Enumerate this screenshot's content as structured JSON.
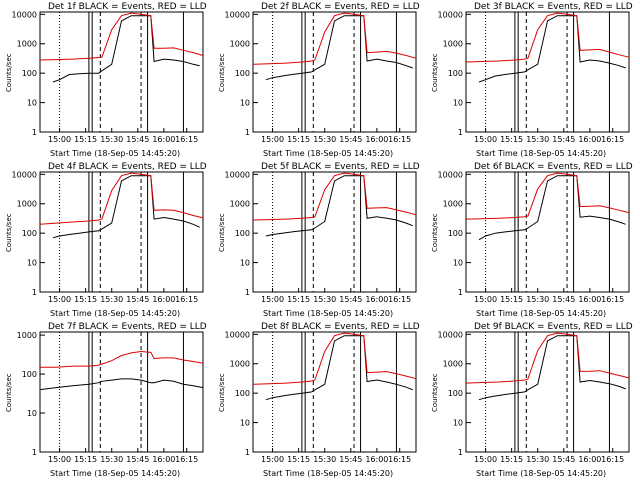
{
  "chart_data": [
    {
      "type": "line",
      "title": "Det 1f BLACK = Events, RED = LLD",
      "xlabel": "Start Time (18-Sep-05 14:45:20)",
      "ylabel": "Counts/sec",
      "x_ticks": [
        "15:00",
        "15:15",
        "15:30",
        "15:45",
        "16:00",
        "16:15"
      ],
      "y_ticks": [
        "1",
        "10",
        "100",
        "1000",
        "10000"
      ],
      "y_scale": "log",
      "ylim": [
        1,
        12000
      ],
      "series": [
        {
          "name": "Events",
          "color": "#000000",
          "x": [
            8,
            12,
            18,
            24,
            30,
            36,
            38,
            44,
            50,
            56,
            62,
            68,
            70,
            76,
            82,
            88,
            94,
            98
          ],
          "y": [
            50,
            60,
            90,
            95,
            100,
            100,
            120,
            200,
            6000,
            9000,
            9000,
            9000,
            250,
            300,
            280,
            250,
            200,
            180
          ]
        },
        {
          "name": "LLD",
          "color": "#dd0000",
          "x": [
            0,
            10,
            20,
            30,
            36,
            38,
            44,
            50,
            56,
            62,
            68,
            70,
            76,
            82,
            88,
            94,
            100
          ],
          "y": [
            280,
            290,
            300,
            320,
            340,
            350,
            3000,
            9000,
            11000,
            10000,
            9000,
            700,
            700,
            720,
            600,
            500,
            400
          ]
        }
      ]
    },
    {
      "type": "line",
      "title": "Det 2f BLACK = Events, RED = LLD",
      "xlabel": "Start Time (18-Sep-05 14:45:20)",
      "ylabel": "Counts/sec",
      "x_ticks": [
        "15:00",
        "15:15",
        "15:30",
        "15:45",
        "16:00",
        "16:15"
      ],
      "y_ticks": [
        "1",
        "10",
        "100",
        "1000",
        "10000"
      ],
      "y_scale": "log",
      "ylim": [
        1,
        12000
      ],
      "series": [
        {
          "name": "Events",
          "color": "#000000",
          "x": [
            8,
            12,
            18,
            24,
            30,
            36,
            38,
            44,
            50,
            56,
            62,
            68,
            70,
            76,
            82,
            88,
            94,
            98
          ],
          "y": [
            60,
            70,
            80,
            90,
            100,
            110,
            130,
            200,
            6000,
            9000,
            9000,
            9000,
            260,
            300,
            260,
            230,
            180,
            150
          ]
        },
        {
          "name": "LLD",
          "color": "#dd0000",
          "x": [
            0,
            10,
            20,
            30,
            36,
            38,
            44,
            50,
            56,
            62,
            68,
            70,
            76,
            82,
            88,
            94,
            100
          ],
          "y": [
            200,
            210,
            220,
            240,
            260,
            280,
            2500,
            9000,
            11000,
            10000,
            9000,
            500,
            520,
            550,
            480,
            400,
            320
          ]
        }
      ]
    },
    {
      "type": "line",
      "title": "Det 3f BLACK = Events, RED = LLD",
      "xlabel": "Start Time (18-Sep-05 14:45:20)",
      "ylabel": "Counts/sec",
      "x_ticks": [
        "15:00",
        "15:15",
        "15:30",
        "15:45",
        "16:00",
        "16:15"
      ],
      "y_ticks": [
        "1",
        "10",
        "100",
        "1000",
        "10000"
      ],
      "y_scale": "log",
      "ylim": [
        1,
        12000
      ],
      "series": [
        {
          "name": "Events",
          "color": "#000000",
          "x": [
            8,
            12,
            18,
            24,
            30,
            36,
            38,
            44,
            50,
            56,
            62,
            68,
            70,
            76,
            82,
            88,
            94,
            98
          ],
          "y": [
            50,
            60,
            80,
            90,
            100,
            110,
            130,
            200,
            6000,
            9000,
            9000,
            9000,
            240,
            280,
            260,
            220,
            180,
            150
          ]
        },
        {
          "name": "LLD",
          "color": "#dd0000",
          "x": [
            0,
            10,
            20,
            30,
            36,
            38,
            44,
            50,
            56,
            62,
            68,
            70,
            76,
            82,
            88,
            94,
            100
          ],
          "y": [
            240,
            250,
            260,
            280,
            300,
            320,
            3000,
            9000,
            11000,
            10000,
            9000,
            600,
            620,
            640,
            520,
            420,
            350
          ]
        }
      ]
    },
    {
      "type": "line",
      "title": "Det 4f BLACK = Events, RED = LLD",
      "xlabel": "Start Time (18-Sep-05 14:45:20)",
      "ylabel": "Counts/sec",
      "x_ticks": [
        "15:00",
        "15:15",
        "15:30",
        "15:45",
        "16:00",
        "16:15"
      ],
      "y_ticks": [
        "1",
        "10",
        "100",
        "1000",
        "10000"
      ],
      "y_scale": "log",
      "ylim": [
        1,
        12000
      ],
      "series": [
        {
          "name": "Events",
          "color": "#000000",
          "x": [
            8,
            12,
            18,
            24,
            30,
            36,
            38,
            44,
            50,
            56,
            62,
            68,
            70,
            76,
            82,
            88,
            94,
            98
          ],
          "y": [
            70,
            80,
            90,
            100,
            110,
            120,
            140,
            220,
            6000,
            9000,
            9000,
            9000,
            300,
            340,
            300,
            260,
            200,
            160
          ]
        },
        {
          "name": "LLD",
          "color": "#dd0000",
          "x": [
            0,
            10,
            20,
            30,
            36,
            38,
            44,
            50,
            56,
            62,
            68,
            70,
            76,
            82,
            88,
            94,
            100
          ],
          "y": [
            200,
            220,
            240,
            260,
            280,
            300,
            2800,
            9000,
            11000,
            10000,
            9000,
            600,
            620,
            600,
            500,
            400,
            330
          ]
        }
      ]
    },
    {
      "type": "line",
      "title": "Det 5f BLACK = Events, RED = LLD",
      "xlabel": "Start Time (18-Sep-05 14:45:20)",
      "ylabel": "Counts/sec",
      "x_ticks": [
        "15:00",
        "15:15",
        "15:30",
        "15:45",
        "16:00",
        "16:15"
      ],
      "y_ticks": [
        "1",
        "10",
        "100",
        "1000",
        "10000"
      ],
      "y_scale": "log",
      "ylim": [
        1,
        12000
      ],
      "series": [
        {
          "name": "Events",
          "color": "#000000",
          "x": [
            8,
            12,
            18,
            24,
            30,
            36,
            38,
            44,
            50,
            56,
            62,
            68,
            70,
            76,
            82,
            88,
            94,
            98
          ],
          "y": [
            80,
            90,
            100,
            110,
            120,
            130,
            150,
            250,
            6000,
            9000,
            9000,
            9000,
            320,
            360,
            320,
            280,
            220,
            180
          ]
        },
        {
          "name": "LLD",
          "color": "#dd0000",
          "x": [
            0,
            10,
            20,
            30,
            36,
            38,
            44,
            50,
            56,
            62,
            68,
            70,
            76,
            82,
            88,
            94,
            100
          ],
          "y": [
            280,
            290,
            300,
            320,
            340,
            360,
            3000,
            9000,
            11000,
            10000,
            9000,
            700,
            720,
            740,
            620,
            520,
            420
          ]
        }
      ]
    },
    {
      "type": "line",
      "title": "Det 6f BLACK = Events, RED = LLD",
      "xlabel": "Start Time (18-Sep-05 14:45:20)",
      "ylabel": "Counts/sec",
      "x_ticks": [
        "15:00",
        "15:15",
        "15:30",
        "15:45",
        "16:00",
        "16:15"
      ],
      "y_ticks": [
        "1",
        "10",
        "100",
        "1000",
        "10000"
      ],
      "y_scale": "log",
      "ylim": [
        1,
        12000
      ],
      "series": [
        {
          "name": "Events",
          "color": "#000000",
          "x": [
            8,
            12,
            18,
            24,
            30,
            36,
            38,
            44,
            50,
            56,
            62,
            68,
            70,
            76,
            82,
            88,
            94,
            98
          ],
          "y": [
            60,
            80,
            100,
            110,
            120,
            130,
            150,
            250,
            6000,
            9000,
            9000,
            9000,
            350,
            380,
            340,
            300,
            240,
            200
          ]
        },
        {
          "name": "LLD",
          "color": "#dd0000",
          "x": [
            0,
            10,
            20,
            30,
            36,
            38,
            44,
            50,
            56,
            62,
            68,
            70,
            76,
            82,
            88,
            94,
            100
          ],
          "y": [
            300,
            310,
            320,
            340,
            360,
            380,
            3200,
            9000,
            11000,
            10000,
            9000,
            800,
            820,
            860,
            720,
            600,
            500
          ]
        }
      ]
    },
    {
      "type": "line",
      "title": "Det 7f BLACK = Events, RED = LLD",
      "xlabel": "Start Time (18-Sep-05 14:45:20)",
      "ylabel": "Counts/sec",
      "x_ticks": [
        "15:00",
        "15:15",
        "15:30",
        "15:45",
        "16:00",
        "16:15"
      ],
      "y_ticks": [
        "1",
        "10",
        "100",
        "1000"
      ],
      "y_scale": "log",
      "ylim": [
        1,
        1200
      ],
      "series": [
        {
          "name": "Events",
          "color": "#000000",
          "x": [
            0,
            10,
            20,
            30,
            36,
            38,
            44,
            50,
            56,
            62,
            68,
            70,
            76,
            82,
            88,
            94,
            100
          ],
          "y": [
            40,
            45,
            50,
            55,
            60,
            65,
            70,
            75,
            75,
            70,
            60,
            60,
            70,
            65,
            55,
            50,
            45
          ]
        },
        {
          "name": "LLD",
          "color": "#dd0000",
          "x": [
            0,
            10,
            20,
            30,
            36,
            38,
            44,
            50,
            56,
            62,
            68,
            70,
            76,
            82,
            88,
            94,
            100
          ],
          "y": [
            150,
            150,
            160,
            160,
            170,
            180,
            220,
            300,
            350,
            380,
            360,
            250,
            260,
            260,
            230,
            210,
            190
          ]
        }
      ]
    },
    {
      "type": "line",
      "title": "Det 8f BLACK = Events, RED = LLD",
      "xlabel": "Start Time (18-Sep-05 14:45:20)",
      "ylabel": "Counts/sec",
      "x_ticks": [
        "15:00",
        "15:15",
        "15:30",
        "15:45",
        "16:00",
        "16:15"
      ],
      "y_ticks": [
        "1",
        "10",
        "100",
        "1000",
        "10000"
      ],
      "y_scale": "log",
      "ylim": [
        1,
        12000
      ],
      "series": [
        {
          "name": "Events",
          "color": "#000000",
          "x": [
            8,
            12,
            18,
            24,
            30,
            36,
            38,
            44,
            50,
            56,
            62,
            68,
            70,
            76,
            82,
            88,
            94,
            98
          ],
          "y": [
            60,
            70,
            80,
            90,
            100,
            110,
            130,
            200,
            6000,
            9000,
            9000,
            9000,
            250,
            280,
            240,
            200,
            160,
            130
          ]
        },
        {
          "name": "LLD",
          "color": "#dd0000",
          "x": [
            0,
            10,
            20,
            30,
            36,
            38,
            44,
            50,
            56,
            62,
            68,
            70,
            76,
            82,
            88,
            94,
            100
          ],
          "y": [
            200,
            210,
            220,
            240,
            260,
            280,
            2600,
            9000,
            11000,
            10000,
            9000,
            500,
            520,
            540,
            460,
            380,
            310
          ]
        }
      ]
    },
    {
      "type": "line",
      "title": "Det 9f BLACK = Events, RED = LLD",
      "xlabel": "Start Time (18-Sep-05 14:45:20)",
      "ylabel": "Counts/sec",
      "x_ticks": [
        "15:00",
        "15:15",
        "15:30",
        "15:45",
        "16:00",
        "16:15"
      ],
      "y_ticks": [
        "1",
        "10",
        "100",
        "1000",
        "10000"
      ],
      "y_scale": "log",
      "ylim": [
        1,
        12000
      ],
      "series": [
        {
          "name": "Events",
          "color": "#000000",
          "x": [
            8,
            12,
            18,
            24,
            30,
            36,
            38,
            44,
            50,
            56,
            62,
            68,
            70,
            76,
            82,
            88,
            94,
            98
          ],
          "y": [
            60,
            70,
            80,
            90,
            100,
            110,
            130,
            200,
            6000,
            9000,
            9000,
            9000,
            240,
            270,
            240,
            210,
            170,
            140
          ]
        },
        {
          "name": "LLD",
          "color": "#dd0000",
          "x": [
            0,
            10,
            20,
            30,
            36,
            38,
            44,
            50,
            56,
            62,
            68,
            70,
            76,
            82,
            88,
            94,
            100
          ],
          "y": [
            220,
            230,
            240,
            260,
            280,
            300,
            2800,
            9000,
            11000,
            10000,
            9000,
            550,
            560,
            580,
            480,
            400,
            330
          ]
        }
      ]
    }
  ]
}
